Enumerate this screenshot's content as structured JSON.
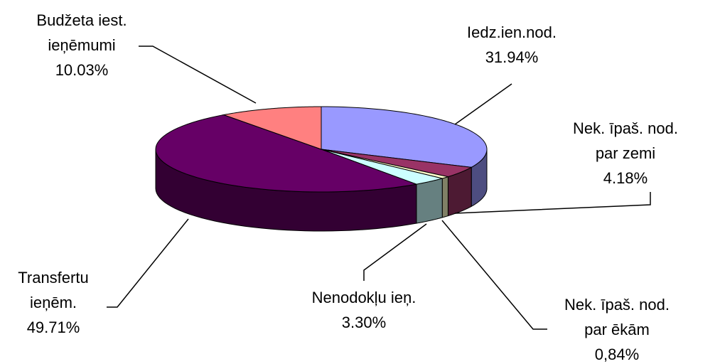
{
  "chart_data": {
    "type": "pie3d",
    "categories": [
      [
        "Iedz.ien.nod."
      ],
      [
        "Nek. īpaš. nod.",
        "par zemi"
      ],
      [
        "Nek. īpaš. nod.",
        "par ēkām"
      ],
      [
        "Nenodokļu ieņ."
      ],
      [
        "Transfertu",
        "ieņēm."
      ],
      [
        "Budžeta iest.",
        "ieņēmumi"
      ]
    ],
    "values": [
      31.94,
      4.18,
      0.84,
      3.3,
      49.71,
      10.03
    ],
    "value_labels": [
      "31.94%",
      "4.18%",
      "0,84%",
      "3.30%",
      "49.71%",
      "10.03%"
    ],
    "colors": [
      "#9999ff",
      "#993366",
      "#ffffcc",
      "#ccffff",
      "#660066",
      "#ff8080"
    ]
  }
}
